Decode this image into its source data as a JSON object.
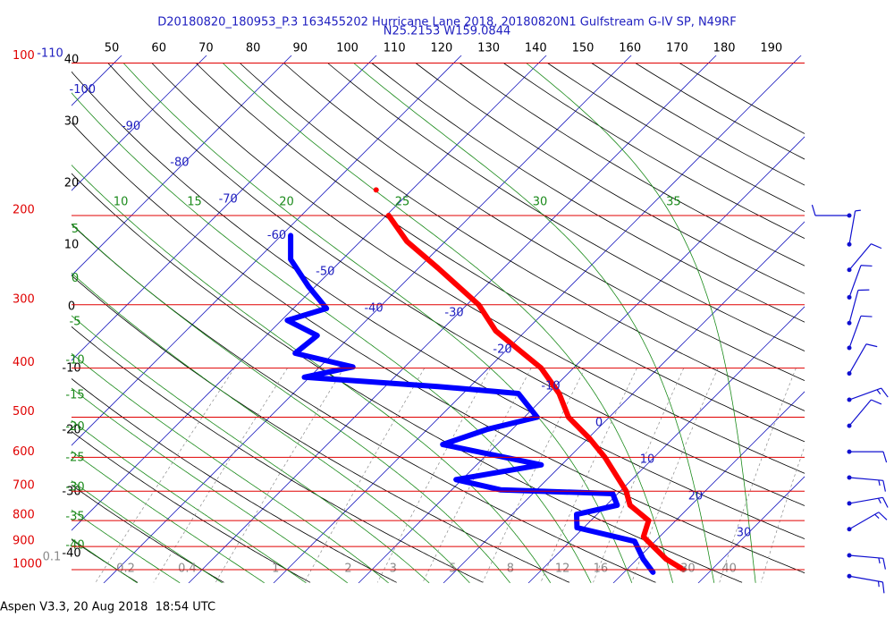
{
  "chart_data": {
    "type": "skewt",
    "title": "D20180820_180953_P.3 163455202 Hurricane Lane 2018, 20180820N1 Gulfstream G-IV SP, N49RF",
    "subtitle": "N25.2153 W159.0844",
    "footer": "Aspen V3.3, 20 Aug 2018  18:54 UTC",
    "ylog": true,
    "ylim": [
      1063,
      100
    ],
    "yticks": [
      100,
      200,
      300,
      400,
      500,
      600,
      700,
      800,
      900,
      1000
    ],
    "isotherms": [
      -110,
      -100,
      -90,
      -80,
      -70,
      -60,
      -50,
      -40,
      -30,
      -20,
      -10,
      0,
      10,
      20,
      30
    ],
    "dry_adiabats": [
      -40,
      -30,
      -20,
      -10,
      0,
      10,
      20,
      30,
      40,
      50,
      60,
      70,
      80,
      90,
      100,
      110,
      120,
      130,
      140,
      150,
      160,
      170,
      180,
      190
    ],
    "moist_adiabats": [
      -40,
      -35,
      -30,
      -25,
      -20,
      -15,
      -10,
      -5,
      0,
      5,
      10,
      15,
      20,
      25,
      30,
      35
    ],
    "mixing_ratios": [
      0.1,
      0.2,
      0.4,
      1,
      2,
      3,
      5,
      8,
      12,
      16,
      30,
      40
    ],
    "colors": {
      "pressure": "#e00000",
      "isotherm": "#2020c0",
      "dry": "#000000",
      "moist": "#1a8a1a",
      "mixing": "#8a8a8a",
      "wind": "#1010d0"
    },
    "series": [
      {
        "color": "#ff0000",
        "pressure": [
          200,
          225,
          254,
          300,
          338,
          400,
          449,
          500,
          551,
          600,
          700,
          746,
          800,
          861,
          900,
          953,
          1000
        ],
        "temperature": [
          -49.7,
          -44.5,
          -37.7,
          -28.6,
          -23.5,
          -13.8,
          -8.7,
          -4.8,
          0.2,
          4.2,
          10.7,
          12.8,
          16.8,
          18.1,
          20.4,
          23.4,
          26.7
        ]
      },
      {
        "color": "#0000ff",
        "pressure": [
          219,
          244,
          276,
          305,
          322,
          345,
          374,
          398,
          417,
          435,
          449,
          500,
          528,
          566,
          621,
          664,
          696,
          708,
          746,
          778,
          826,
          879,
          953,
          1012
        ],
        "temperature": [
          -58.9,
          -56.1,
          -50.8,
          -46.1,
          -49.3,
          -44,
          -44.5,
          -36.1,
          -40.6,
          -23.8,
          -13.5,
          -8.5,
          -12.9,
          -16.4,
          -2.4,
          -10.7,
          -4.2,
          9.4,
          11.3,
          7.6,
          9.2,
          17.6,
          20.7,
          23.4
        ]
      },
      {
        "color": "#ff0000",
        "pressure": [
          178
        ],
        "temperature": [
          -54.2
        ]
      }
    ],
    "wind": {
      "pressure": [
        200,
        228,
        256,
        290,
        326,
        365,
        410,
        462,
        520,
        585,
        658,
        740,
        832,
        937,
        1030
      ],
      "direction": [
        270,
        10,
        40,
        20,
        15,
        20,
        30,
        70,
        40,
        90,
        95,
        80,
        60,
        95,
        100
      ],
      "speed": [
        10,
        5,
        10,
        10,
        10,
        10,
        10,
        15,
        10,
        10,
        15,
        15,
        15,
        15,
        15
      ]
    }
  }
}
